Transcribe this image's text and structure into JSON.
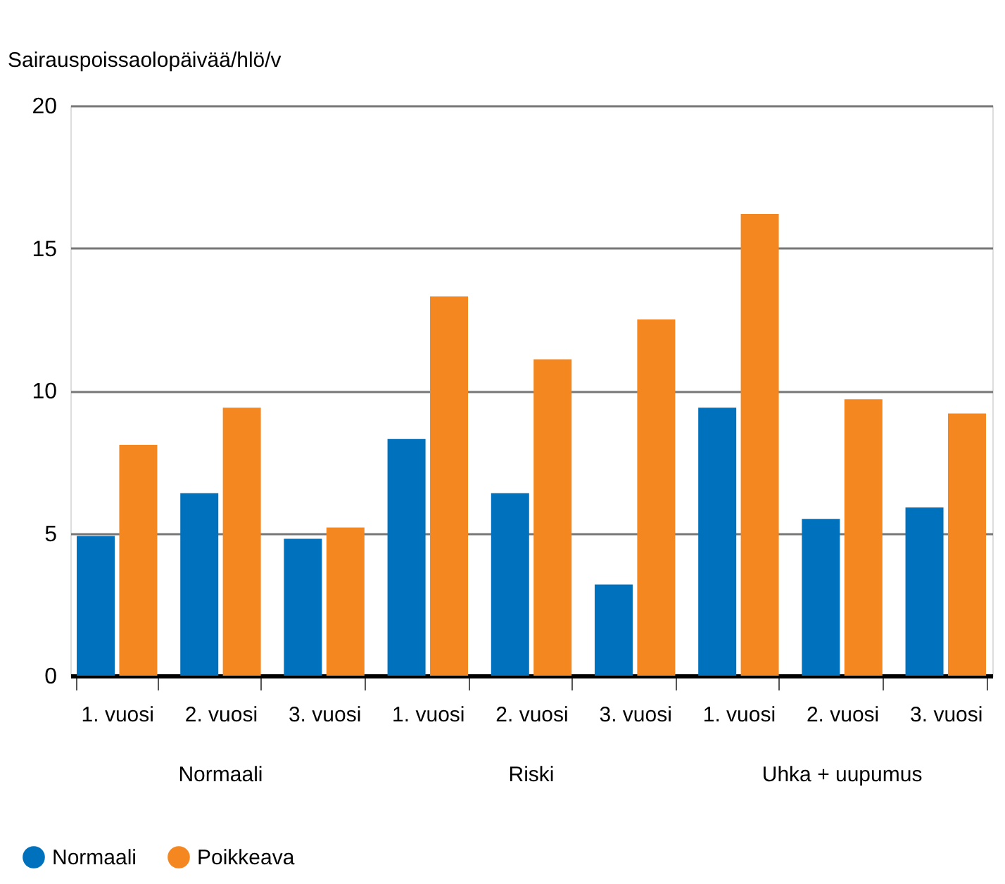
{
  "chart_data": {
    "type": "bar",
    "ylabel": "Sairauspoissaolopäivää/hlö/v",
    "categories": [
      "1. vuosi",
      "2. vuosi",
      "3. vuosi",
      "1. vuosi",
      "2. vuosi",
      "3. vuosi",
      "1. vuosi",
      "2. vuosi",
      "3. vuosi"
    ],
    "series": [
      {
        "name": "Normaali",
        "color": "#0071bc",
        "values": [
          4.9,
          6.4,
          4.8,
          8.3,
          6.4,
          3.2,
          9.4,
          5.5,
          5.9
        ]
      },
      {
        "name": "Poikkeava",
        "color": "#f58720",
        "values": [
          8.1,
          9.4,
          5.2,
          13.3,
          11.1,
          12.5,
          16.2,
          9.7,
          9.2
        ]
      }
    ],
    "annotations": [
      "Normaali",
      "Riski",
      "Uhka + uupumus"
    ],
    "ylim": [
      0,
      20
    ],
    "yticks": [
      0,
      5,
      10,
      15,
      20
    ],
    "grid": "y",
    "legend": "bottom left"
  }
}
